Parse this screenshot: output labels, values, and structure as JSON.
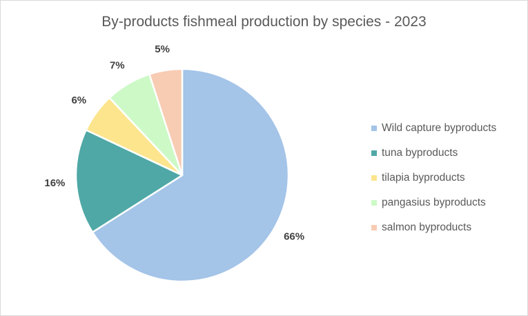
{
  "chart_data": {
    "type": "pie",
    "title": "By-products fishmeal production by species - 2023",
    "legend_position": "right",
    "slices": [
      {
        "name": "Wild capture byproducts",
        "value": 66,
        "label": "66%",
        "color": "#a4c4e8"
      },
      {
        "name": "tuna byproducts",
        "value": 16,
        "label": "16%",
        "color": "#4fa8a6"
      },
      {
        "name": "tilapia byproducts",
        "value": 6,
        "label": "6%",
        "color": "#fde58e"
      },
      {
        "name": "pangasius byproducts",
        "value": 7,
        "label": "7%",
        "color": "#cdf9c7"
      },
      {
        "name": "salmon byproducts",
        "value": 5,
        "label": "5%",
        "color": "#f8cbb3"
      }
    ]
  }
}
